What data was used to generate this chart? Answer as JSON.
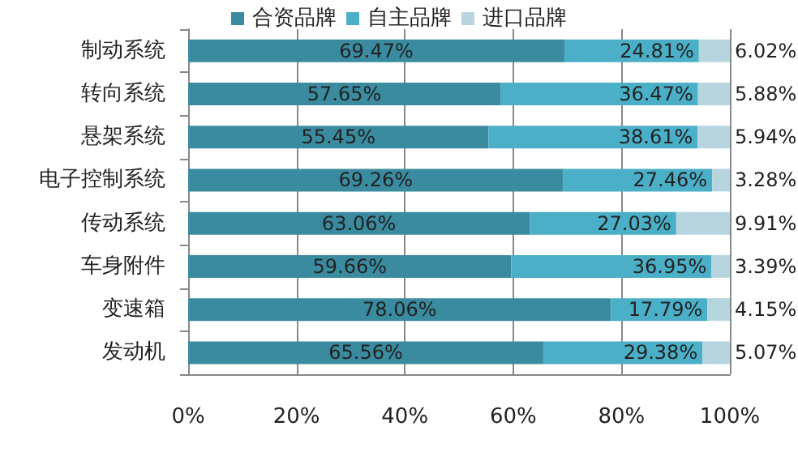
{
  "chart_data": {
    "type": "bar",
    "orientation": "horizontal",
    "stacked": true,
    "legend": "top",
    "grid": "x",
    "categories": [
      "制动系统",
      "转向系统",
      "悬架系统",
      "电子控制系统",
      "传动系统",
      "车身附件",
      "变速箱",
      "发动机"
    ],
    "xlim": [
      0,
      100
    ],
    "xticks": [
      {
        "value": 0,
        "label": "0%"
      },
      {
        "value": 20,
        "label": "20%"
      },
      {
        "value": 40,
        "label": "40%"
      },
      {
        "value": 60,
        "label": "60%"
      },
      {
        "value": 80,
        "label": "80%"
      },
      {
        "value": 100,
        "label": "100%"
      }
    ],
    "series": [
      {
        "name": "合资品牌",
        "color": "#3a8ba0",
        "values": [
          69.47,
          57.65,
          55.45,
          69.26,
          63.06,
          59.66,
          78.06,
          65.56
        ],
        "value_labels": [
          "69.47%",
          "57.65%",
          "55.45%",
          "69.26%",
          "63.06%",
          "59.66%",
          "78.06%",
          "65.56%"
        ]
      },
      {
        "name": "自主品牌",
        "color": "#4bafc8",
        "values": [
          24.81,
          36.47,
          38.61,
          27.46,
          27.03,
          36.95,
          17.79,
          29.38
        ],
        "value_labels": [
          "24.81%",
          "36.47%",
          "38.61%",
          "27.46%",
          "27.03%",
          "36.95%",
          "17.79%",
          "29.38%"
        ]
      },
      {
        "name": "进口品牌",
        "color": "#b7d5df",
        "values": [
          6.02,
          5.88,
          5.94,
          3.28,
          9.91,
          3.39,
          4.15,
          5.07
        ],
        "value_labels": [
          "6.02%",
          "5.88%",
          "5.94%",
          "3.28%",
          "9.91%",
          "3.39%",
          "4.15%",
          "5.07%"
        ]
      }
    ]
  }
}
